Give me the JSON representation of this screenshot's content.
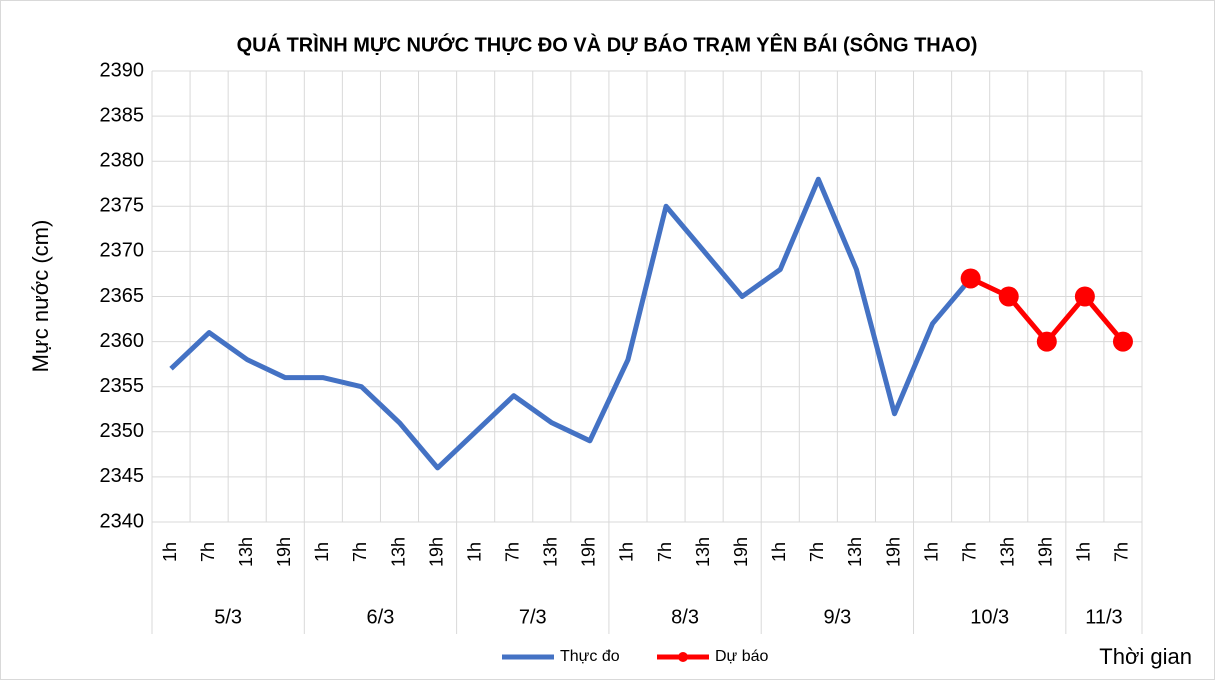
{
  "chart_data": {
    "type": "line",
    "title": "QUÁ TRÌNH MỰC NƯỚC THỰC ĐO VÀ DỰ BÁO TRẠM YÊN BÁI (SÔNG THAO)",
    "y_label": "Mực nước (cm)",
    "x_label": "Thời gian",
    "categories": [
      "1h",
      "7h",
      "13h",
      "19h",
      "1h",
      "7h",
      "13h",
      "19h",
      "1h",
      "7h",
      "13h",
      "19h",
      "1h",
      "7h",
      "13h",
      "19h",
      "1h",
      "7h",
      "13h",
      "19h",
      "1h",
      "7h",
      "13h",
      "19h",
      "1h",
      "7h"
    ],
    "groups": [
      "5/3",
      "6/3",
      "7/3",
      "8/3",
      "9/3",
      "10/3",
      "11/3"
    ],
    "series": [
      {
        "name": "Thực đo",
        "color": "#4472c4",
        "markers": false,
        "values": [
          2357,
          2361,
          2358,
          2356,
          2356,
          2355,
          2351,
          2346,
          2350,
          2354,
          2351,
          2349,
          2358,
          2375,
          2370,
          2365,
          2368,
          2378,
          2368,
          2352,
          2362,
          2367,
          null,
          null,
          null,
          null
        ]
      },
      {
        "name": "Dự báo",
        "color": "#ff0000",
        "markers": true,
        "values": [
          null,
          null,
          null,
          null,
          null,
          null,
          null,
          null,
          null,
          null,
          null,
          null,
          null,
          null,
          null,
          null,
          null,
          null,
          null,
          null,
          null,
          2367,
          2365,
          2360,
          2365,
          2360
        ]
      }
    ],
    "ylim": [
      2340,
      2390
    ],
    "yticks": [
      2340,
      2345,
      2350,
      2355,
      2360,
      2365,
      2370,
      2375,
      2380,
      2385,
      2390
    ],
    "grid": true
  }
}
